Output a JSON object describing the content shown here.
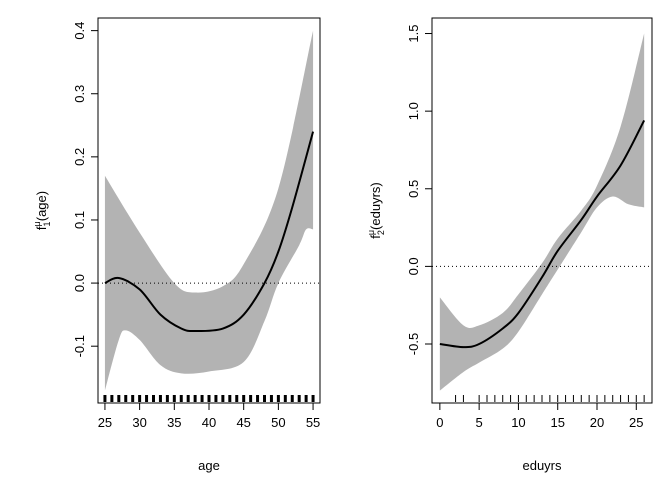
{
  "chart_data": [
    {
      "type": "line",
      "xlabel": "age",
      "ylabel_base": "f",
      "ylabel_sub": "1",
      "ylabel_sup": "μ",
      "ylabel_arg": "(age)",
      "xlim": [
        24,
        56
      ],
      "ylim": [
        -0.19,
        0.42
      ],
      "xticks": [
        25,
        30,
        35,
        40,
        45,
        50,
        55
      ],
      "yticks": [
        -0.1,
        0.0,
        0.1,
        0.2,
        0.3,
        0.4
      ],
      "ytick_labels": [
        "-0.1",
        "0.0",
        "0.1",
        "0.2",
        "0.3",
        "0.4"
      ],
      "reference_line": 0,
      "fit": {
        "x": [
          25,
          27,
          30,
          33,
          36,
          38,
          42,
          45,
          48,
          50,
          52,
          55
        ],
        "y": [
          0.0,
          0.008,
          -0.01,
          -0.05,
          -0.072,
          -0.076,
          -0.072,
          -0.05,
          0.0,
          0.05,
          0.12,
          0.24
        ]
      },
      "upper": {
        "x": [
          25,
          30,
          35,
          38,
          42,
          45,
          50,
          55
        ],
        "y": [
          0.17,
          0.08,
          0.0,
          -0.015,
          -0.005,
          0.03,
          0.15,
          0.4
        ]
      },
      "lower": {
        "x": [
          25,
          27,
          28,
          30,
          33,
          36,
          40,
          45,
          48,
          50,
          53,
          54,
          55
        ],
        "y": [
          -0.17,
          -0.09,
          -0.075,
          -0.09,
          -0.13,
          -0.143,
          -0.14,
          -0.125,
          -0.06,
          0.0,
          0.06,
          0.085,
          0.085
        ]
      },
      "rug": [
        25,
        26,
        27,
        28,
        29,
        30,
        31,
        32,
        33,
        34,
        35,
        36,
        37,
        38,
        39,
        40,
        41,
        42,
        43,
        44,
        45,
        46,
        47,
        48,
        49,
        50,
        51,
        52,
        53,
        54,
        55
      ],
      "band_color": "#b3b3b3"
    },
    {
      "type": "line",
      "xlabel": "eduyrs",
      "ylabel_base": "f",
      "ylabel_sub": "2",
      "ylabel_sup": "μ",
      "ylabel_arg": "(eduyrs)",
      "xlim": [
        -1,
        27
      ],
      "ylim": [
        -0.88,
        1.6
      ],
      "xticks": [
        0,
        5,
        10,
        15,
        20,
        25
      ],
      "yticks": [
        -0.5,
        0.0,
        0.5,
        1.0,
        1.5
      ],
      "ytick_labels": [
        "-0.5",
        "0.0",
        "0.5",
        "1.0",
        "1.5"
      ],
      "reference_line": 0,
      "fit": {
        "x": [
          0,
          3,
          5,
          8,
          10,
          13,
          15,
          18,
          20,
          23,
          26
        ],
        "y": [
          -0.5,
          -0.52,
          -0.5,
          -0.4,
          -0.3,
          -0.07,
          0.1,
          0.3,
          0.45,
          0.65,
          0.94
        ]
      },
      "upper": {
        "x": [
          0,
          3,
          5,
          8,
          10,
          13,
          15,
          18,
          20,
          23,
          26
        ],
        "y": [
          -0.2,
          -0.38,
          -0.38,
          -0.3,
          -0.18,
          0.02,
          0.18,
          0.36,
          0.52,
          0.9,
          1.5
        ]
      },
      "lower": {
        "x": [
          0,
          3,
          5,
          8,
          10,
          13,
          15,
          18,
          20,
          22,
          24,
          26
        ],
        "y": [
          -0.8,
          -0.68,
          -0.62,
          -0.53,
          -0.42,
          -0.18,
          -0.02,
          0.22,
          0.38,
          0.45,
          0.4,
          0.38
        ]
      },
      "rug": [
        2,
        3,
        5,
        6,
        7,
        8,
        9,
        10,
        11,
        12,
        13,
        14,
        15,
        16,
        17,
        18,
        19,
        20,
        21,
        22,
        23,
        24,
        25,
        26
      ],
      "band_color": "#b3b3b3"
    }
  ]
}
